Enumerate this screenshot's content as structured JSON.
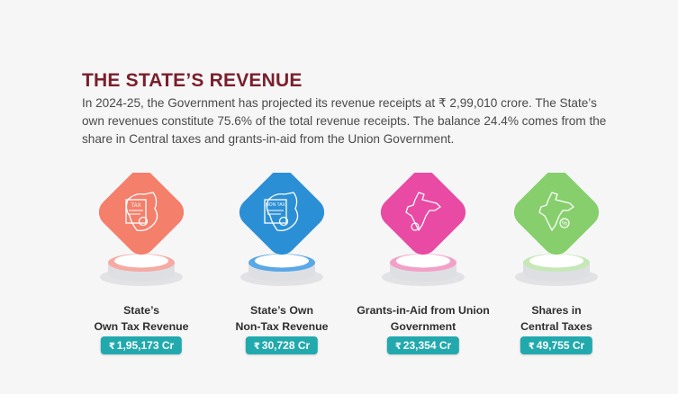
{
  "title": "THE STATE’S REVENUE",
  "intro": "In 2024-25, the Government has projected its revenue receipts at ₹ 2,99,010 crore. The State’s own revenues constitute 75.6% of the total revenue receipts. The balance 24.4% comes from the share in Central taxes and grants-in-aid from the Union Government.",
  "currency_symbol": "₹",
  "cards": [
    {
      "line1": "State’s",
      "line2": "Own Tax Revenue",
      "value": "1,95,173 Cr",
      "color": "#f47f6b",
      "ring": "#f7a9a3",
      "icon": "tax-document-map-icon",
      "doc_text": "TAX"
    },
    {
      "line1": "State’s Own",
      "line2": "Non-Tax Revenue",
      "value": "30,728 Cr",
      "color": "#2b8fd6",
      "ring": "#5aa8e6",
      "icon": "non-tax-document-map-icon",
      "doc_text": "NON TAX"
    },
    {
      "line1": "Grants-in-Aid from Union",
      "line2": "Government",
      "value": "23,354 Cr",
      "color": "#e94aa3",
      "ring": "#f3a0c8",
      "icon": "india-map-coin-icon",
      "doc_text": ""
    },
    {
      "line1": "Shares in",
      "line2": "Central Taxes",
      "value": "49,755 Cr",
      "color": "#86cf6c",
      "ring": "#c5e8b6",
      "icon": "india-map-percent-icon",
      "doc_text": ""
    }
  ]
}
